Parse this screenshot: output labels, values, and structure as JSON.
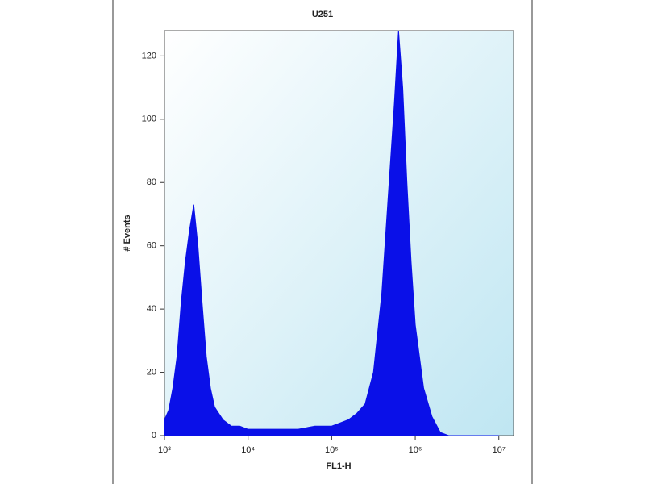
{
  "chart_data": {
    "type": "area",
    "title": "U251",
    "x_label": "FL1-H",
    "y_label": "# Events",
    "xscale": "log",
    "color": "#0a10e8",
    "x": [
      1000,
      1122,
      1259,
      1413,
      1585,
      1778,
      1995,
      2239,
      2512,
      2818,
      3162,
      3548,
      3981,
      5012,
      6310,
      7943,
      10000,
      15849,
      25119,
      39811,
      63096,
      100000,
      125893,
      158489,
      199526,
      251189,
      316228,
      398107,
      501187,
      562341,
      630957,
      707946,
      794328,
      891251,
      1000000,
      1258925,
      1584893,
      1995262,
      2511886,
      3981072,
      10000000
    ],
    "values": [
      5,
      8,
      15,
      25,
      42,
      55,
      65,
      73,
      60,
      42,
      25,
      15,
      9,
      5,
      3,
      3,
      2,
      2,
      2,
      2,
      3,
      3,
      4,
      5,
      7,
      10,
      20,
      45,
      85,
      105,
      128,
      110,
      80,
      55,
      35,
      15,
      6,
      1,
      0,
      0,
      0
    ],
    "xlim": [
      1000,
      15000000
    ],
    "ylim": [
      0,
      128
    ],
    "xticks": [
      {
        "value": 1000,
        "label": "10³"
      },
      {
        "value": 10000,
        "label": "10⁴"
      },
      {
        "value": 100000,
        "label": "10⁵"
      },
      {
        "value": 1000000,
        "label": "10⁶"
      },
      {
        "value": 10000000,
        "label": "10⁷"
      }
    ],
    "yticks": [
      0,
      20,
      40,
      60,
      80,
      100,
      120
    ]
  }
}
